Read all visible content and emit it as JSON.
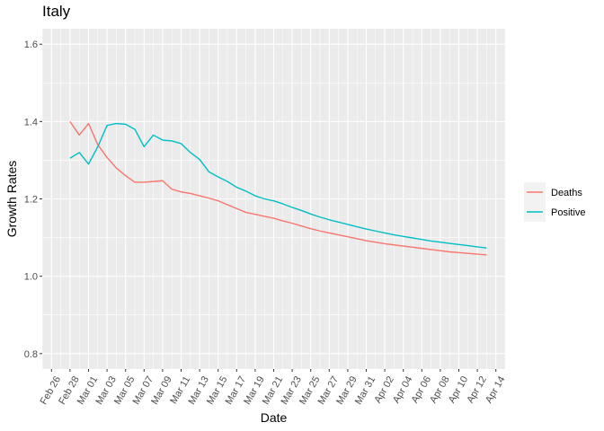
{
  "chart_data": {
    "type": "line",
    "title": "Italy",
    "xlabel": "Date",
    "ylabel": "Growth Rates",
    "ylim": [
      0.76,
      1.64
    ],
    "xlim": [
      "2020-02-25",
      "2020-04-15"
    ],
    "y_ticks": [
      0.8,
      1.0,
      1.2,
      1.4,
      1.6
    ],
    "x_ticks": [
      "Feb 26",
      "Feb 28",
      "Mar 01",
      "Mar 03",
      "Mar 05",
      "Mar 07",
      "Mar 09",
      "Mar 11",
      "Mar 13",
      "Mar 15",
      "Mar 17",
      "Mar 19",
      "Mar 21",
      "Mar 23",
      "Mar 25",
      "Mar 27",
      "Mar 29",
      "Mar 31",
      "Apr 02",
      "Apr 04",
      "Apr 06",
      "Apr 08",
      "Apr 10",
      "Apr 12",
      "Apr 14"
    ],
    "x_tick_dates": [
      "2020-02-26",
      "2020-02-28",
      "2020-03-01",
      "2020-03-03",
      "2020-03-05",
      "2020-03-07",
      "2020-03-09",
      "2020-03-11",
      "2020-03-13",
      "2020-03-15",
      "2020-03-17",
      "2020-03-19",
      "2020-03-21",
      "2020-03-23",
      "2020-03-25",
      "2020-03-27",
      "2020-03-29",
      "2020-03-31",
      "2020-04-02",
      "2020-04-04",
      "2020-04-06",
      "2020-04-08",
      "2020-04-10",
      "2020-04-12",
      "2020-04-14"
    ],
    "grid": true,
    "legend_position": "right",
    "background_color": "#ebebeb",
    "x": [
      "2020-02-28",
      "2020-02-29",
      "2020-03-01",
      "2020-03-02",
      "2020-03-03",
      "2020-03-04",
      "2020-03-05",
      "2020-03-06",
      "2020-03-07",
      "2020-03-08",
      "2020-03-09",
      "2020-03-10",
      "2020-03-11",
      "2020-03-12",
      "2020-03-13",
      "2020-03-14",
      "2020-03-15",
      "2020-03-16",
      "2020-03-17",
      "2020-03-18",
      "2020-03-19",
      "2020-03-20",
      "2020-03-21",
      "2020-03-22",
      "2020-03-23",
      "2020-03-24",
      "2020-03-25",
      "2020-03-26",
      "2020-03-27",
      "2020-03-28",
      "2020-03-29",
      "2020-03-30",
      "2020-03-31",
      "2020-04-01",
      "2020-04-02",
      "2020-04-03",
      "2020-04-04",
      "2020-04-05",
      "2020-04-06",
      "2020-04-07",
      "2020-04-08",
      "2020-04-09",
      "2020-04-10",
      "2020-04-11",
      "2020-04-12",
      "2020-04-13"
    ],
    "series": [
      {
        "name": "Deaths",
        "color": "#f8766d",
        "values": [
          1.4,
          1.365,
          1.395,
          1.34,
          1.307,
          1.28,
          1.26,
          1.243,
          1.243,
          1.245,
          1.247,
          1.225,
          1.218,
          1.214,
          1.208,
          1.202,
          1.195,
          1.185,
          1.175,
          1.165,
          1.16,
          1.155,
          1.15,
          1.143,
          1.137,
          1.13,
          1.123,
          1.117,
          1.112,
          1.107,
          1.102,
          1.097,
          1.092,
          1.088,
          1.084,
          1.081,
          1.078,
          1.075,
          1.072,
          1.069,
          1.066,
          1.063,
          1.061,
          1.059,
          1.057,
          1.055
        ]
      },
      {
        "name": "Positive",
        "color": "#00bfc4",
        "values": [
          1.305,
          1.32,
          1.29,
          1.335,
          1.39,
          1.395,
          1.393,
          1.38,
          1.335,
          1.365,
          1.352,
          1.35,
          1.343,
          1.32,
          1.302,
          1.27,
          1.257,
          1.245,
          1.23,
          1.22,
          1.208,
          1.2,
          1.195,
          1.187,
          1.178,
          1.17,
          1.161,
          1.153,
          1.146,
          1.14,
          1.134,
          1.128,
          1.122,
          1.117,
          1.112,
          1.107,
          1.103,
          1.099,
          1.095,
          1.091,
          1.088,
          1.085,
          1.082,
          1.079,
          1.076,
          1.073
        ]
      }
    ]
  }
}
